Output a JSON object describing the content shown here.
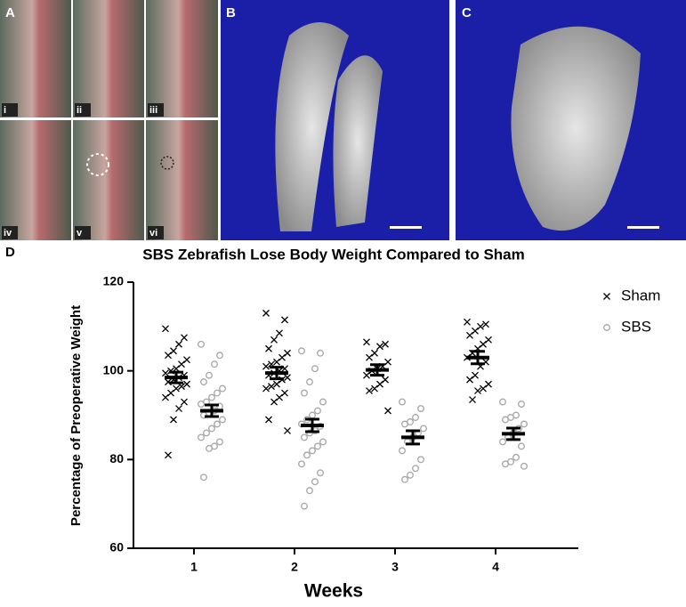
{
  "panel_labels": [
    "A",
    "B",
    "C",
    "D"
  ],
  "subpanel_labels": [
    "i",
    "ii",
    "iii",
    "iv",
    "v",
    "vi"
  ],
  "chart_data": {
    "type": "dotplot",
    "title": "SBS Zebrafish Lose Body Weight Compared to Sham",
    "x_label": "Weeks",
    "y_label": "Percentage of Preoperative Weight",
    "categories": [
      "1",
      "2",
      "3",
      "4"
    ],
    "ylim": [
      60,
      120
    ],
    "yticks": [
      60,
      80,
      100,
      120
    ],
    "series": [
      {
        "name": "Sham",
        "marker": "x",
        "color": "#000000",
        "values": [
          [
            109.5,
            107.5,
            106,
            104.5,
            103.5,
            102.5,
            101.5,
            100.5,
            100,
            99.5,
            99,
            98.5,
            98,
            97.5,
            97,
            96.5,
            96,
            95,
            94,
            93,
            91.5,
            89,
            81
          ],
          [
            113,
            111.5,
            108.5,
            107,
            105,
            104,
            103,
            102,
            101.5,
            101,
            100.5,
            100,
            99.5,
            99,
            98.5,
            98,
            97,
            96.5,
            96,
            95,
            94,
            93,
            89,
            86.5
          ],
          [
            106.5,
            106,
            105.5,
            104,
            103,
            102,
            101,
            100.5,
            100,
            99,
            98,
            97,
            96,
            95.5,
            91
          ],
          [
            111,
            110.5,
            110,
            109,
            108,
            107,
            106,
            105,
            104,
            103,
            102,
            101,
            99,
            98,
            97,
            96,
            95.5,
            93.5
          ]
        ],
        "mean": [
          98.5,
          99.5,
          100.2,
          103
        ],
        "sem": [
          1.2,
          1.3,
          1.2,
          1.4
        ]
      },
      {
        "name": "SBS",
        "marker": "circle",
        "color": "#a6a6a6",
        "values": [
          [
            106,
            103.5,
            101.5,
            99,
            97.5,
            96,
            95,
            94,
            93,
            92.5,
            92,
            91,
            90.5,
            90,
            89,
            88,
            87,
            86,
            85,
            84,
            83,
            82.5,
            76
          ],
          [
            104.5,
            104,
            100.5,
            97.5,
            95,
            93,
            91,
            90,
            89,
            88,
            87.5,
            86.5,
            86,
            85,
            84,
            83,
            82,
            81,
            79,
            77,
            75,
            73,
            69.5
          ],
          [
            93,
            91.5,
            89.5,
            88.5,
            88,
            87,
            86,
            85,
            84,
            82,
            80,
            78,
            76.5,
            75.5
          ],
          [
            93,
            92.5,
            90,
            89.5,
            89,
            88,
            87,
            86,
            85,
            84,
            83,
            80.5,
            79.5,
            79,
            78.5
          ]
        ],
        "mean": [
          91,
          87.7,
          85,
          85.8
        ],
        "sem": [
          1.3,
          1.4,
          1.5,
          1.3
        ]
      }
    ]
  }
}
